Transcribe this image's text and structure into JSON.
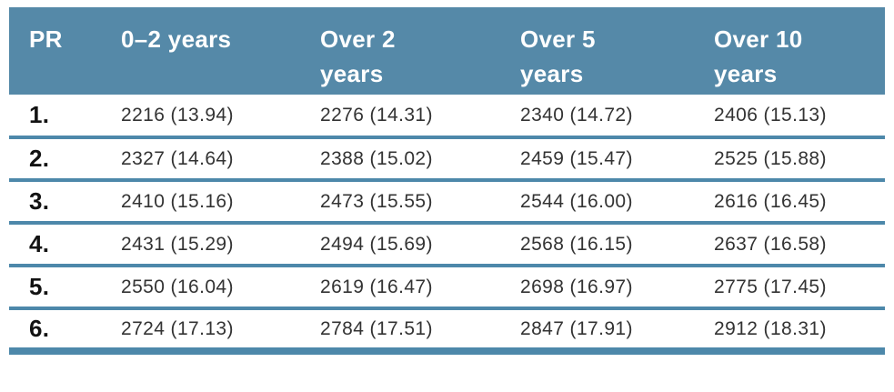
{
  "table": {
    "columns": [
      {
        "label": "PR"
      },
      {
        "label": "0–2 years"
      },
      {
        "label": "Over 2 years"
      },
      {
        "label": "Over 5 years"
      },
      {
        "label": "Over 10 years"
      }
    ],
    "rows": [
      {
        "pr": "1.",
        "cells": [
          "2216 (13.94)",
          "2276 (14.31)",
          "2340 (14.72)",
          "2406 (15.13)"
        ]
      },
      {
        "pr": "2.",
        "cells": [
          "2327 (14.64)",
          "2388 (15.02)",
          "2459 (15.47)",
          "2525 (15.88)"
        ]
      },
      {
        "pr": "3.",
        "cells": [
          "2410 (15.16)",
          "2473 (15.55)",
          "2544 (16.00)",
          "2616 (16.45)"
        ]
      },
      {
        "pr": "4.",
        "cells": [
          "2431 (15.29)",
          "2494 (15.69)",
          "2568 (16.15)",
          "2637 (16.58)"
        ]
      },
      {
        "pr": "5.",
        "cells": [
          "2550 (16.04)",
          "2619 (16.47)",
          "2698 (16.97)",
          "2775 (17.45)"
        ]
      },
      {
        "pr": "6.",
        "cells": [
          "2724 (17.13)",
          "2784 (17.51)",
          "2847 (17.91)",
          "2912 (18.31)"
        ]
      }
    ],
    "colors": {
      "header_bg": "#5589a8",
      "divider": "#4d88aa",
      "header_text": "#ffffff",
      "row_number_text": "#121212",
      "cell_text": "#333333"
    }
  }
}
